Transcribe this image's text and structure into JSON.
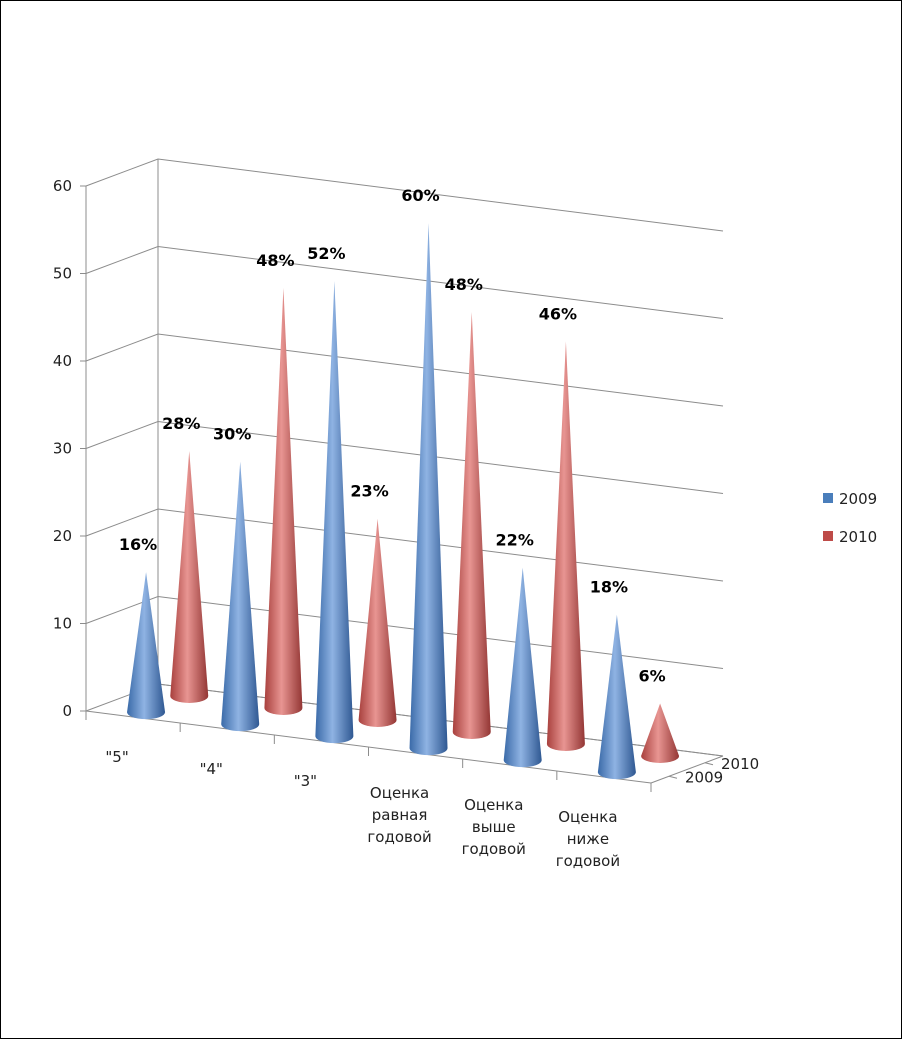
{
  "chart_data": {
    "type": "bar",
    "subtype": "3d-cone",
    "categories": [
      "\"5\"",
      "\"4\"",
      "\"3\"",
      "Оценка равная годовой",
      "Оценка выше годовой",
      "Оценка ниже годовой"
    ],
    "series": [
      {
        "name": "2009",
        "color": "#4a7ebb",
        "values": [
          16,
          30,
          52,
          60,
          22,
          18
        ],
        "labels": [
          "16%",
          "30%",
          "52%",
          "60%",
          "22%",
          "18%"
        ]
      },
      {
        "name": "2010",
        "color": "#be4b48",
        "values": [
          28,
          48,
          23,
          48,
          46,
          6
        ],
        "labels": [
          "28%",
          "48%",
          "23%",
          "48%",
          "46%",
          "6%"
        ]
      }
    ],
    "depth_labels": [
      "2010",
      "2009"
    ],
    "ylim": [
      0,
      60
    ],
    "y_ticks": [
      0,
      10,
      20,
      30,
      40,
      50,
      60
    ],
    "gridlines": true,
    "legend_position": "right"
  }
}
